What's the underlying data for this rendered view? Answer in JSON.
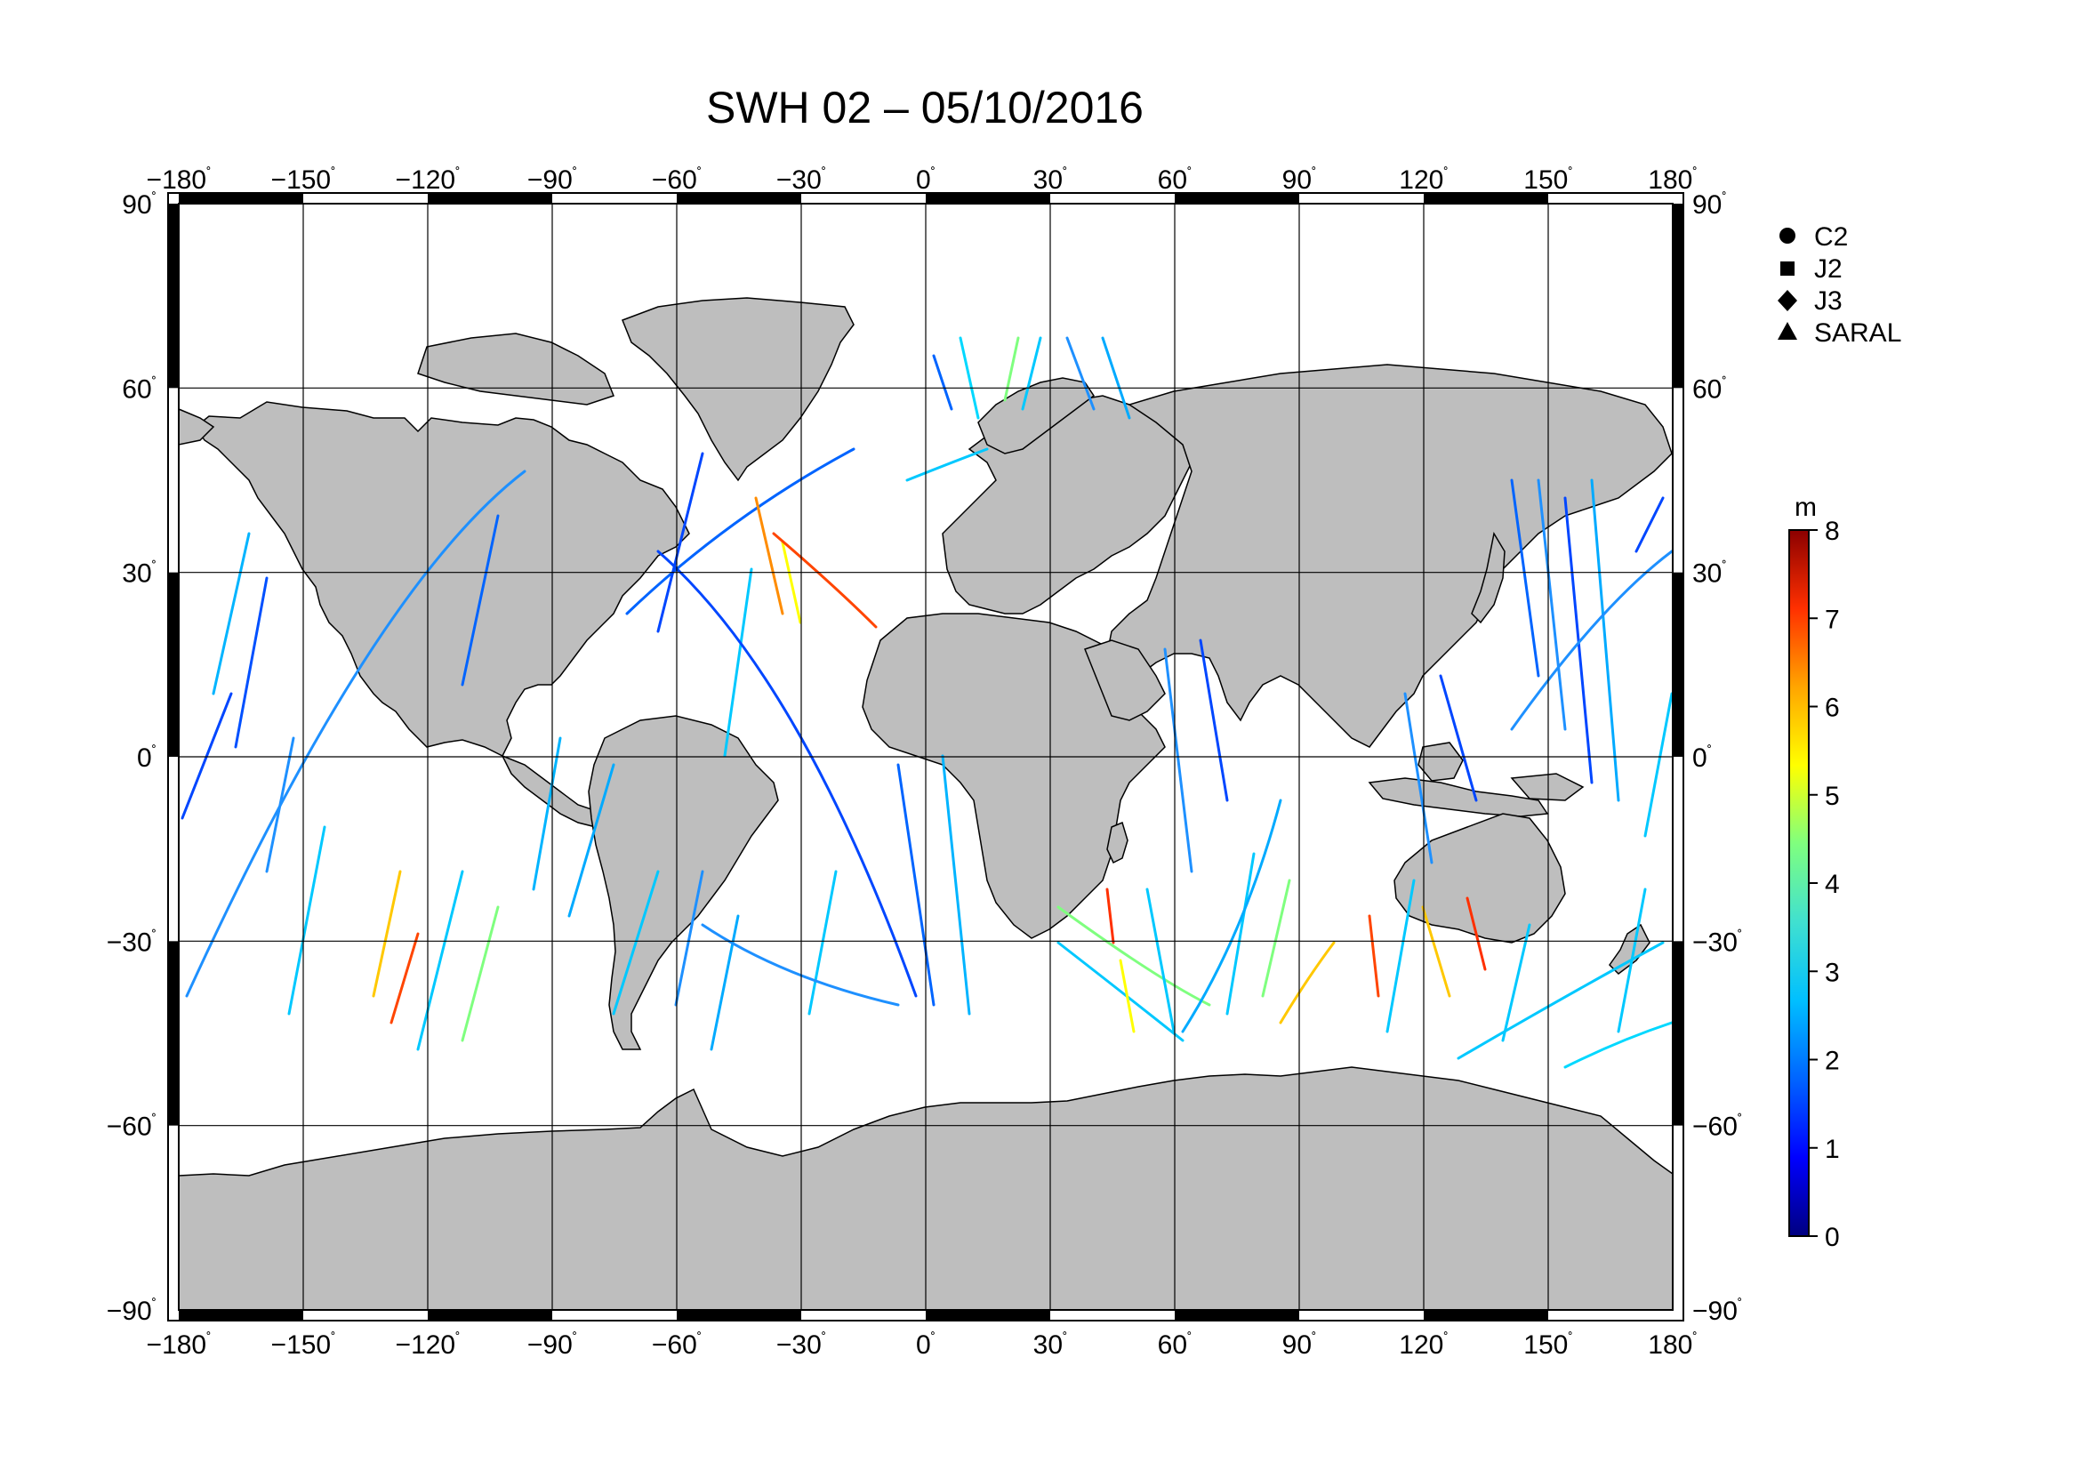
{
  "title": "SWH 02 – 05/10/2016",
  "axes": {
    "lon_ticks": [
      "−180",
      "−150",
      "−120",
      "−90",
      "−60",
      "−30",
      "0",
      "30",
      "60",
      "90",
      "120",
      "150",
      "180"
    ],
    "lat_ticks": [
      "90",
      "60",
      "30",
      "0",
      "−30",
      "−60",
      "−90"
    ],
    "degree_mark": "˚"
  },
  "legend": {
    "items": [
      {
        "label": "C2",
        "marker": "circle"
      },
      {
        "label": "J2",
        "marker": "square"
      },
      {
        "label": "J3",
        "marker": "diamond"
      },
      {
        "label": "SARAL",
        "marker": "triangle"
      }
    ]
  },
  "colorbar": {
    "unit": "m",
    "ticks": [
      "0",
      "1",
      "2",
      "3",
      "4",
      "5",
      "6",
      "7",
      "8"
    ],
    "colors": [
      "#000080",
      "#0000ff",
      "#0064ff",
      "#00bfff",
      "#40e0d0",
      "#7fff7f",
      "#ffff00",
      "#ffa500",
      "#ff3000",
      "#8b0000"
    ]
  },
  "colors": {
    "land": "#bebebe",
    "coast": "#000000",
    "grid": "#000000"
  }
}
